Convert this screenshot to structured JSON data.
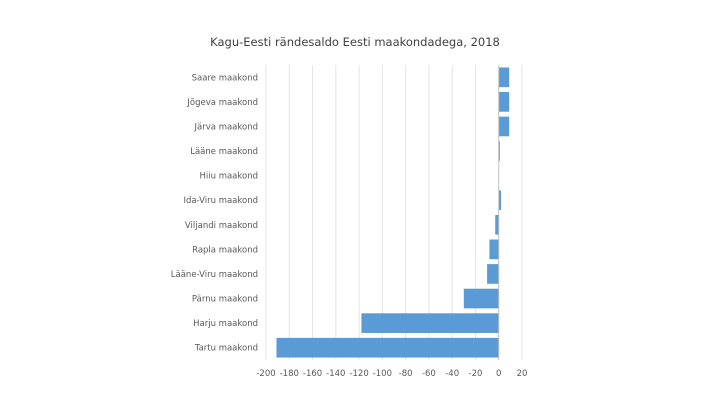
{
  "chart_data": {
    "type": "bar",
    "orientation": "horizontal",
    "title": "Kagu-Eesti rändesaldo Eesti maakondadega, 2018",
    "categories": [
      "Saare maakond",
      "Jõgeva maakond",
      "Järva maakond",
      "Lääne maakond",
      "Hiiu maakond",
      "Ida-Viru maakond",
      "Viljandi maakond",
      "Rapla maakond",
      "Lääne-Viru maakond",
      "Pärnu maakond",
      "Harju maakond",
      "Tartu maakond"
    ],
    "values": [
      9,
      9,
      9,
      1,
      0,
      2,
      -3,
      -8,
      -10,
      -30,
      -118,
      -191
    ],
    "xlim": [
      -200,
      20
    ],
    "xticks": [
      -200,
      -180,
      -160,
      -140,
      -120,
      -100,
      -80,
      -60,
      -40,
      -20,
      0,
      20
    ],
    "xlabel": "",
    "ylabel": "",
    "grid": "vertical",
    "legend": "none",
    "bar_color": "#5b9bd5"
  }
}
